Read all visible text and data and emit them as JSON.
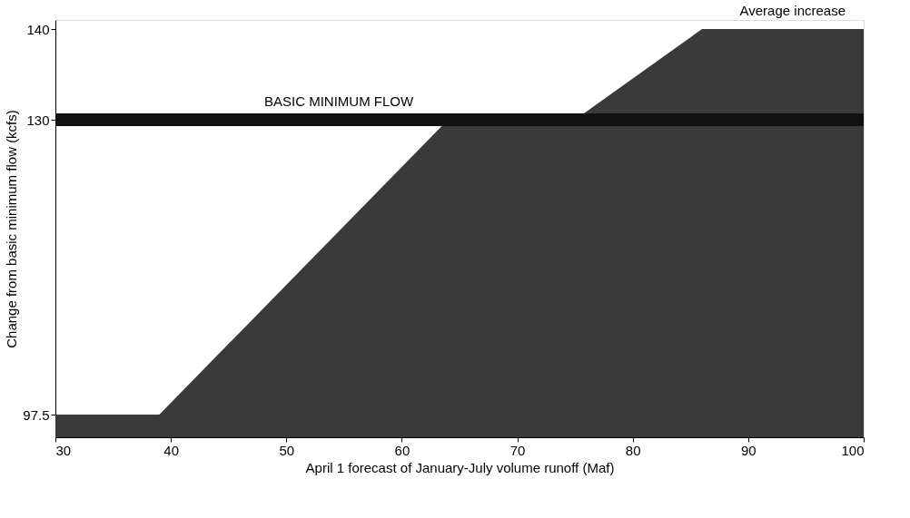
{
  "chart_data": {
    "type": "area",
    "xlabel": "April 1 forecast of January-July volume runoff (Maf)",
    "ylabel": "Change from basic minimum flow (kcfs)",
    "x": [
      30,
      39,
      64,
      75,
      86,
      100
    ],
    "series": [
      {
        "color": "#3a3a3a",
        "values": [
          97.5,
          97.5,
          130,
          130,
          140,
          140
        ]
      }
    ],
    "xlim": [
      30,
      100
    ],
    "xticks": [
      30,
      40,
      50,
      60,
      70,
      80,
      90,
      100
    ],
    "ylim": [
      95,
      141
    ],
    "yticks": [
      97.5,
      130,
      140
    ],
    "ref_lines": [
      {
        "axis": "y",
        "value": 130,
        "label": "BASIC MINIMUM FLOW",
        "color": "#111111"
      }
    ],
    "annotations": [
      "Average increase"
    ],
    "grid": false,
    "legend": false
  }
}
